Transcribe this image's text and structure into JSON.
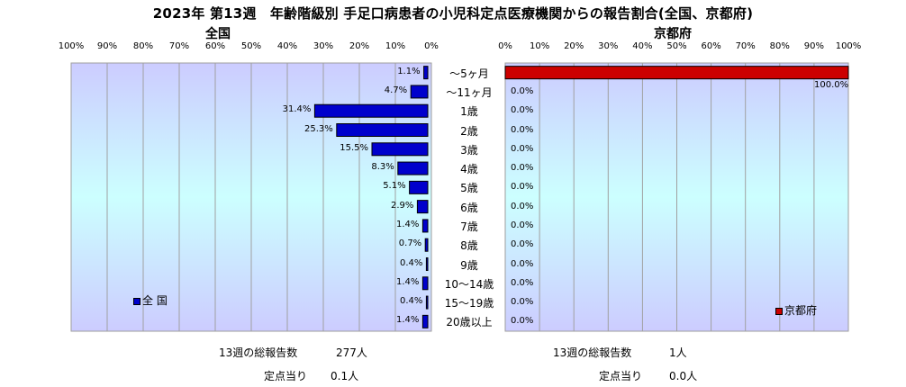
{
  "title": "2023年 第13週　年齢階級別 手足口病患者の小児科定点医療機関からの報告割合(全国、京都府)",
  "chart_data": [
    {
      "type": "bar",
      "orientation": "horizontal",
      "direction": "right-to-left",
      "title": "全国",
      "categories": [
        "～5ヶ月",
        "～11ヶ月",
        "1歳",
        "2歳",
        "3歳",
        "4歳",
        "5歳",
        "6歳",
        "7歳",
        "8歳",
        "9歳",
        "10～14歳",
        "15～19歳",
        "20歳以上"
      ],
      "series": [
        {
          "name": "全 国",
          "color": "#0000cc",
          "values": [
            1.1,
            4.7,
            31.4,
            25.3,
            15.5,
            8.3,
            5.1,
            2.9,
            1.4,
            0.7,
            0.4,
            1.4,
            0.4,
            1.4
          ],
          "labels": [
            "1.1%",
            "4.7%",
            "31.4%",
            "25.3%",
            "15.5%",
            "8.3%",
            "5.1%",
            "2.9%",
            "1.4%",
            "0.7%",
            "0.4%",
            "1.4%",
            "0.4%",
            "1.4%"
          ]
        }
      ],
      "xlim": [
        0,
        100
      ],
      "ticks": [
        "100%",
        "90%",
        "80%",
        "70%",
        "60%",
        "50%",
        "40%",
        "30%",
        "20%",
        "10%",
        "0%"
      ],
      "legend_position": "bottom-left",
      "footer": {
        "total_label": "13週の総報告数",
        "total_value": "277人",
        "per_label": "定点当り",
        "per_value": "0.1人"
      }
    },
    {
      "type": "bar",
      "orientation": "horizontal",
      "direction": "left-to-right",
      "title": "京都府",
      "categories": [
        "～5ヶ月",
        "～11ヶ月",
        "1歳",
        "2歳",
        "3歳",
        "4歳",
        "5歳",
        "6歳",
        "7歳",
        "8歳",
        "9歳",
        "10～14歳",
        "15～19歳",
        "20歳以上"
      ],
      "series": [
        {
          "name": "京都府",
          "color": "#cc0000",
          "values": [
            100.0,
            0,
            0,
            0,
            0,
            0,
            0,
            0,
            0,
            0,
            0,
            0,
            0,
            0
          ],
          "labels": [
            "100.0%",
            "0.0%",
            "0.0%",
            "0.0%",
            "0.0%",
            "0.0%",
            "0.0%",
            "0.0%",
            "0.0%",
            "0.0%",
            "0.0%",
            "0.0%",
            "0.0%",
            "0.0%"
          ]
        }
      ],
      "xlim": [
        0,
        100
      ],
      "ticks": [
        "0%",
        "10%",
        "20%",
        "30%",
        "40%",
        "50%",
        "60%",
        "70%",
        "80%",
        "90%",
        "100%"
      ],
      "legend_position": "bottom-right",
      "footer": {
        "total_label": "13週の総報告数",
        "total_value": "1人",
        "per_label": "定点当り",
        "per_value": "0.0人"
      }
    }
  ]
}
